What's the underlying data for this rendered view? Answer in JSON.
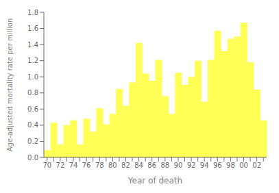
{
  "chart_data": {
    "type": "bar",
    "xlabel": "Year of death",
    "ylabel": "Age-adjusted mortality rate per million",
    "categories": [
      "70",
      null,
      "72",
      null,
      "74",
      null,
      "76",
      null,
      "78",
      null,
      "80",
      null,
      "82",
      null,
      "84",
      null,
      "86",
      null,
      "88",
      null,
      "90",
      null,
      "92",
      null,
      "94",
      null,
      "96",
      null,
      "98",
      null,
      "00",
      null,
      "02",
      null
    ],
    "values": [
      0.09,
      0.43,
      0.16,
      0.4,
      0.46,
      0.16,
      0.48,
      0.32,
      0.61,
      0.41,
      0.54,
      0.85,
      0.64,
      0.93,
      1.42,
      1.04,
      0.95,
      1.21,
      0.76,
      0.54,
      1.05,
      0.9,
      1.0,
      1.2,
      0.69,
      1.21,
      1.57,
      1.32,
      1.47,
      1.5,
      1.67,
      1.18,
      0.84,
      0.46
    ],
    "color": "#ffff55",
    "ylim": [
      0,
      1.8
    ],
    "yticks": [
      {
        "value": 0,
        "label": "0.0"
      },
      0.2,
      0.4,
      0.6,
      0.8,
      {
        "value": 1,
        "label": "1.0"
      },
      1.2,
      1.4,
      1.6,
      1.8
    ],
    "grid": false
  }
}
